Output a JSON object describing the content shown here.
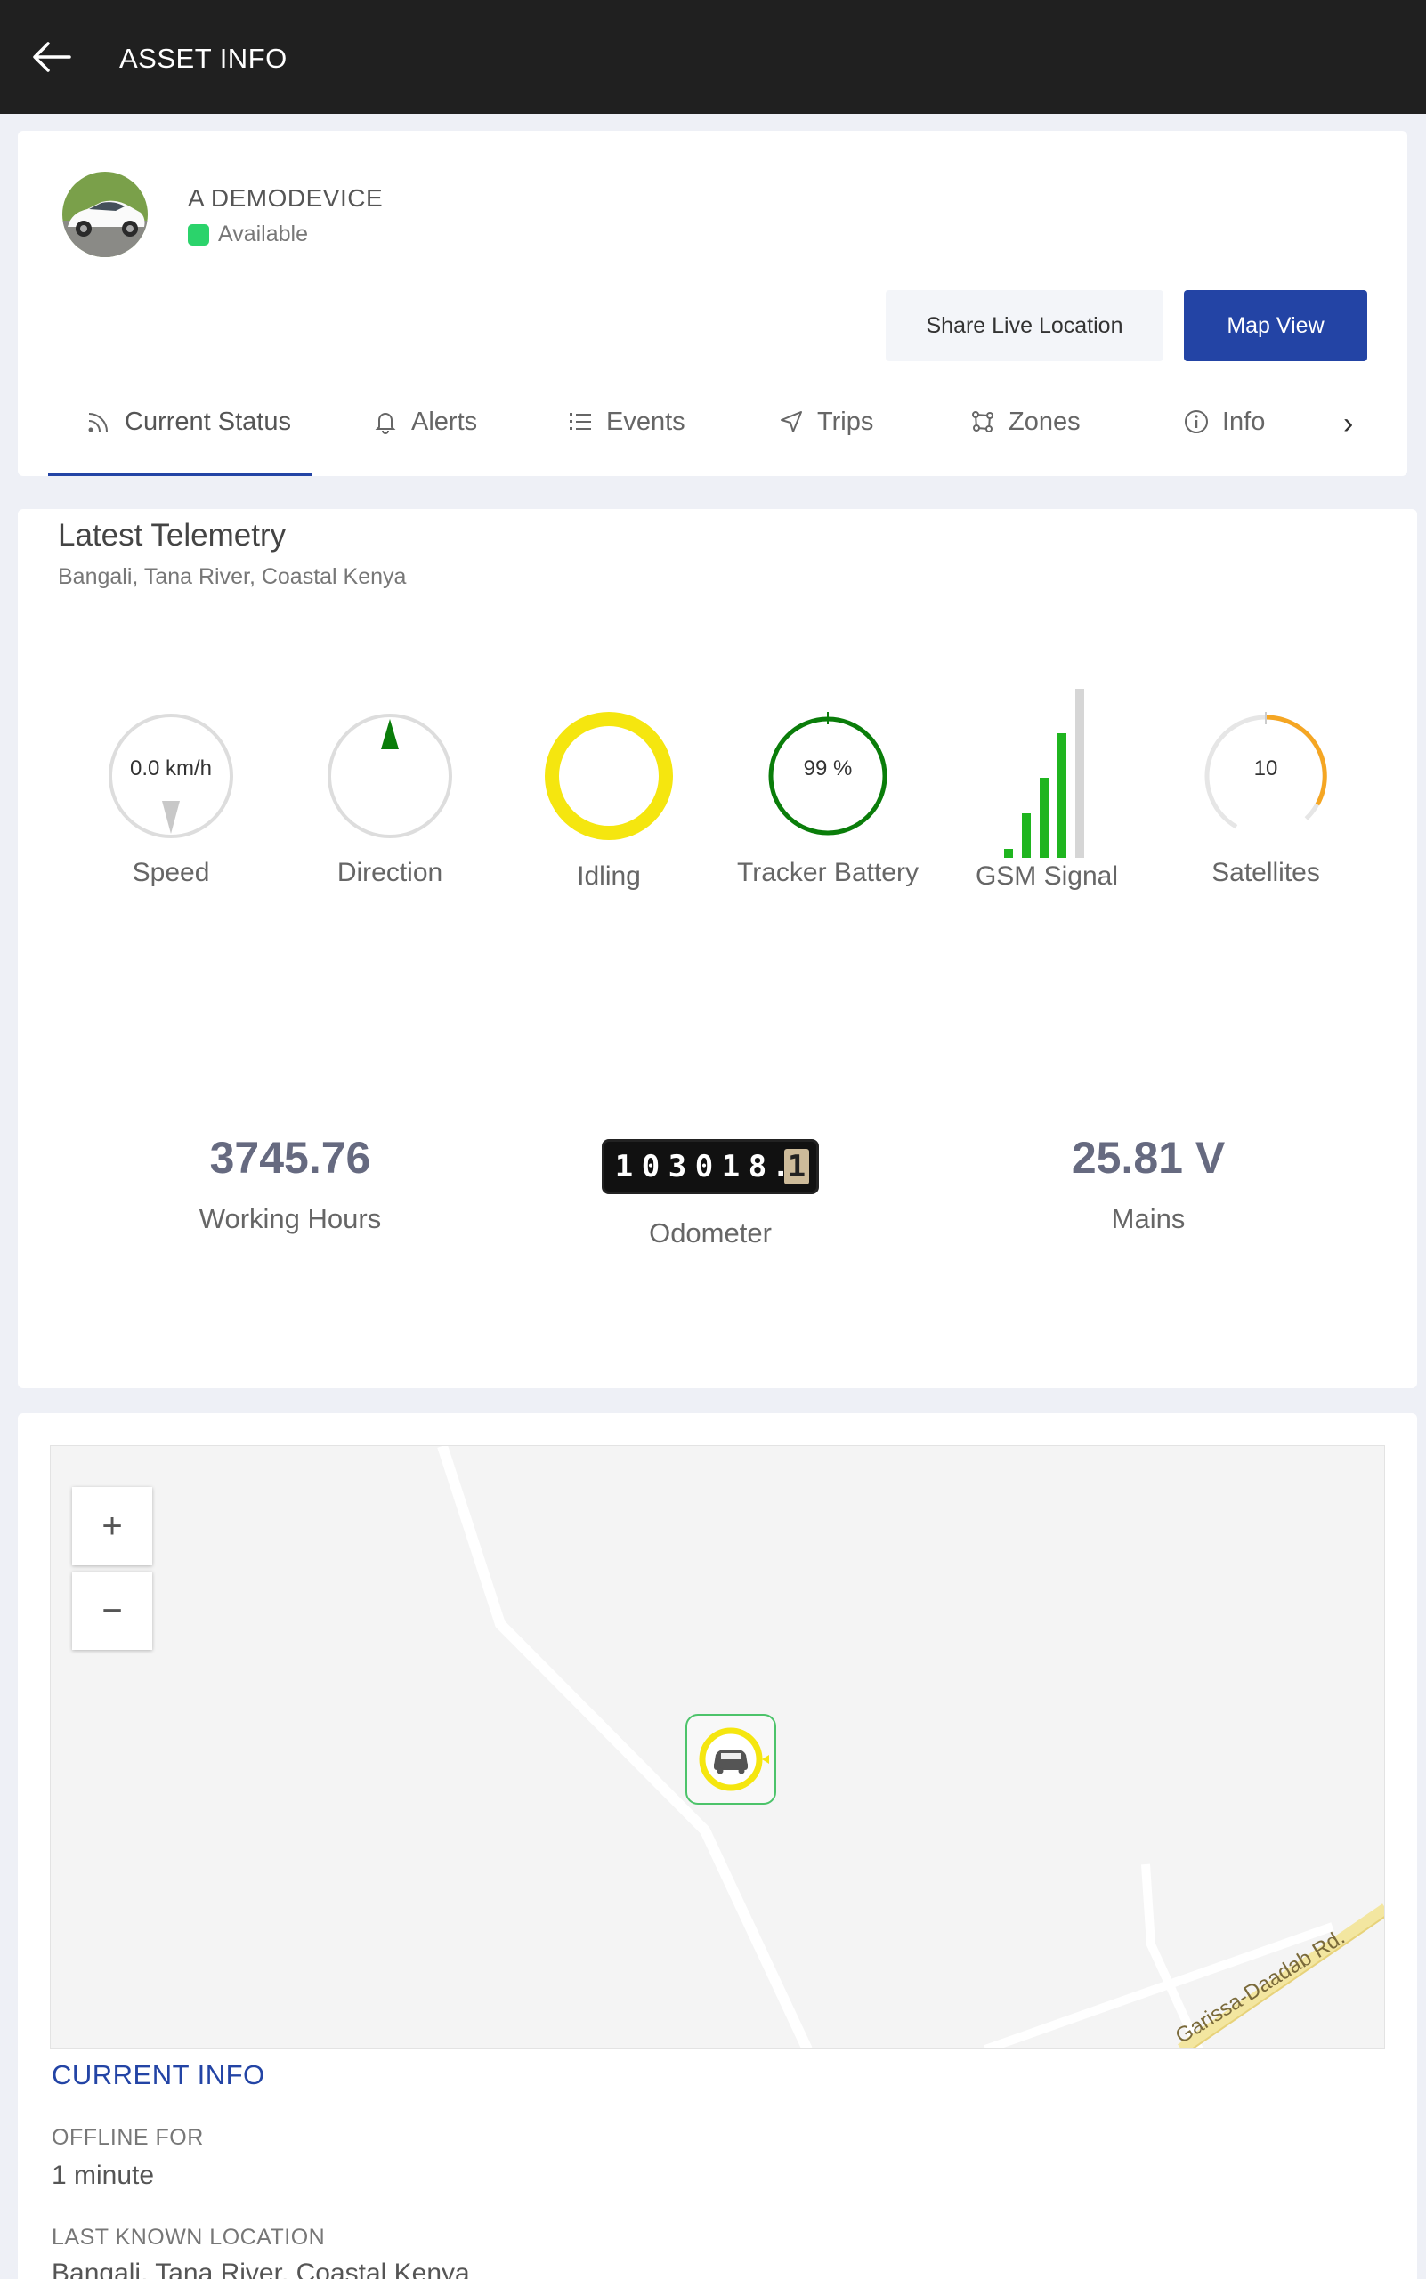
{
  "header": {
    "title": "ASSET INFO"
  },
  "device": {
    "name": "A DEMODEVICE",
    "status": "Available",
    "status_color": "#2bd36b"
  },
  "actions": {
    "share_label": "Share Live Location",
    "map_label": "Map View"
  },
  "tabs": [
    {
      "label": "Current Status",
      "icon": "rss-icon",
      "active": true
    },
    {
      "label": "Alerts",
      "icon": "bell-icon"
    },
    {
      "label": "Events",
      "icon": "list-icon"
    },
    {
      "label": "Trips",
      "icon": "navigation-icon"
    },
    {
      "label": "Zones",
      "icon": "zones-icon"
    },
    {
      "label": "Info",
      "icon": "info-icon"
    }
  ],
  "telemetry": {
    "title": "Latest Telemetry",
    "location": "Bangali, Tana River, Coastal Kenya",
    "gauges": {
      "speed": {
        "label": "Speed",
        "value": "0.0 km/h"
      },
      "direction": {
        "label": "Direction"
      },
      "idling": {
        "label": "Idling",
        "color": "#f5e60f"
      },
      "battery": {
        "label": "Tracker Battery",
        "value": "99 %",
        "percent": 99,
        "color": "#0a7d0a"
      },
      "gsm": {
        "label": "GSM Signal",
        "bars_filled": 4,
        "bars_total": 5,
        "color": "#1fb51f"
      },
      "satellites": {
        "label": "Satellites",
        "value": "10",
        "color": "#f5a623"
      }
    },
    "stats": {
      "working_hours": {
        "value": "3745.76",
        "label": "Working Hours"
      },
      "odometer": {
        "digits": [
          "1",
          "0",
          "3",
          "0",
          "1",
          "8"
        ],
        "decimal": "1",
        "label": "Odometer"
      },
      "mains": {
        "value": "25.81 V",
        "label": "Mains"
      }
    }
  },
  "map": {
    "road_label": "Garissa-Daadab Rd.",
    "zoom_in": "+",
    "zoom_out": "−",
    "marker_color": "#f5e60f"
  },
  "current_info": {
    "title": "CURRENT INFO",
    "offline_label": "OFFLINE FOR",
    "offline_value": "1 minute",
    "location_label": "LAST KNOWN LOCATION",
    "location_value": "Bangali, Tana River, Coastal Kenya"
  }
}
